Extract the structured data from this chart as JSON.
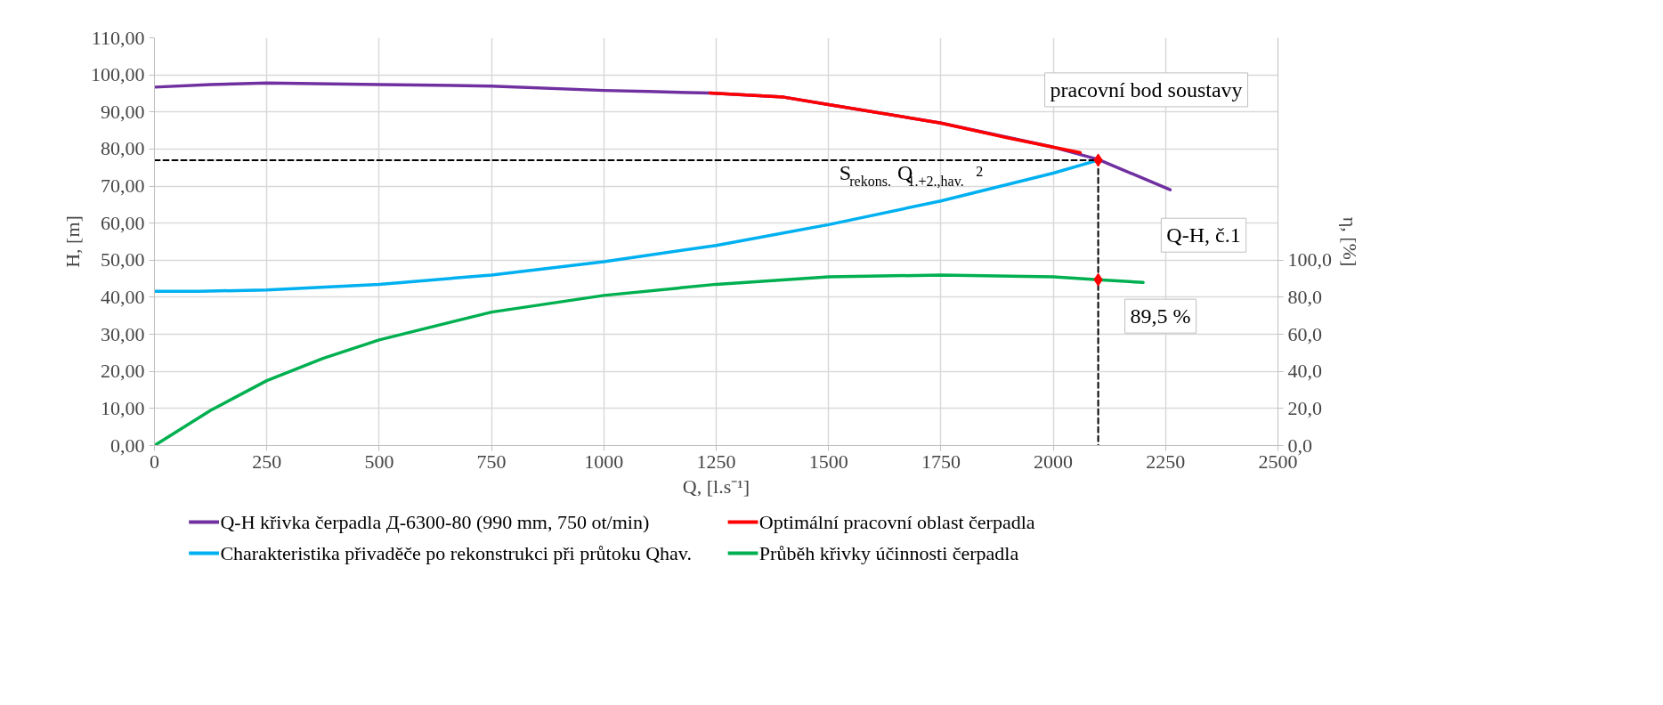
{
  "chart_data": {
    "type": "line",
    "xlabel": "Q, [l.s⁻¹]",
    "ylabel": "H, [m]",
    "y2label": "η, [%]",
    "xlim": [
      0,
      2500
    ],
    "xticks": [
      0,
      250,
      500,
      750,
      1000,
      1250,
      1500,
      1750,
      2000,
      2250,
      2500
    ],
    "ylim": [
      0,
      110
    ],
    "yticks": [
      {
        "value": 0,
        "label": "0,00"
      },
      {
        "value": 10,
        "label": "10,00"
      },
      {
        "value": 20,
        "label": "20,00"
      },
      {
        "value": 30,
        "label": "30,00"
      },
      {
        "value": 40,
        "label": "40,00"
      },
      {
        "value": 50,
        "label": "50,00"
      },
      {
        "value": 60,
        "label": "60,00"
      },
      {
        "value": 70,
        "label": "70,00"
      },
      {
        "value": 80,
        "label": "80,00"
      },
      {
        "value": 90,
        "label": "90,00"
      },
      {
        "value": 100,
        "label": "100,00"
      },
      {
        "value": 110,
        "label": "110,00"
      }
    ],
    "y2lim": [
      0,
      220
    ],
    "y2ticks": [
      {
        "value": 0,
        "label": "0,0"
      },
      {
        "value": 20,
        "label": "20,0"
      },
      {
        "value": 40,
        "label": "40,0"
      },
      {
        "value": 60,
        "label": "60,0"
      },
      {
        "value": 80,
        "label": "80,0"
      },
      {
        "value": 100,
        "label": "100,0"
      }
    ],
    "grid": true,
    "legend": "bottom",
    "marker": "none",
    "line_style": "solid",
    "series": [
      {
        "name": "Q-H křivka čerpadla Д-6300-80 (990 mm, 750 ot/min)",
        "color": "#7030a0",
        "x": [
          0,
          125,
          250,
          500,
          750,
          1000,
          1100,
          1236,
          1400,
          1500,
          1750,
          2000,
          2100,
          2260
        ],
        "values": [
          96.7,
          97.4,
          97.8,
          97.4,
          97.0,
          95.8,
          95.5,
          95.1,
          94.0,
          92.0,
          87.0,
          80.5,
          77.2,
          69.0
        ]
      },
      {
        "name": "Charakteristika přivaděče po rekonstrukci při průtoku Qhav.",
        "color": "#00b0f0",
        "x": [
          0,
          100,
          250,
          500,
          750,
          1000,
          1250,
          1500,
          1750,
          2000,
          2100
        ],
        "values": [
          41.6,
          41.6,
          42.0,
          43.5,
          46.0,
          49.6,
          54.0,
          59.6,
          66.0,
          73.5,
          77.0
        ]
      },
      {
        "name": "Optimální pracovní oblast čerpadla",
        "color": "#ff0000",
        "x": [
          1236,
          1400,
          1500,
          1750,
          1900,
          2060
        ],
        "values": [
          95.1,
          94.0,
          92.0,
          87.0,
          83.0,
          79.0
        ]
      },
      {
        "name": "Průběh křivky účinnosti čerpadla",
        "color": "#00b050",
        "axis": "y2",
        "x": [
          0,
          125,
          250,
          375,
          500,
          750,
          1000,
          1250,
          1500,
          1750,
          2000,
          2100,
          2200
        ],
        "values": [
          0,
          19,
          35,
          47,
          57,
          72,
          81,
          87,
          91,
          92,
          91,
          89.5,
          88
        ]
      },
      {
        "color": "#000000",
        "line_style": "dashed",
        "x": [
          0,
          2100,
          2100
        ],
        "values": [
          77,
          77,
          0
        ]
      },
      {
        "type": "scatter",
        "marker": "diamond",
        "color": "#ff0000",
        "x": [
          2100
        ],
        "values": [
          77
        ]
      },
      {
        "type": "scatter",
        "marker": "diamond",
        "color": "#ff0000",
        "axis": "y2",
        "x": [
          2100
        ],
        "values": [
          89.5
        ]
      }
    ],
    "annotations": [
      {
        "text": "pracovní bod soustavy",
        "x": 2100,
        "y": 77
      },
      {
        "text": "S$_{rekons.}$Q$_{1.+2.,hav.}$$^{2}$",
        "x": 1930,
        "y": 71
      },
      {
        "text": "Q-H, č.1",
        "x": 2260,
        "y": 69
      },
      {
        "text": "89,5 %",
        "x": 2100,
        "y": 44.75
      }
    ]
  }
}
